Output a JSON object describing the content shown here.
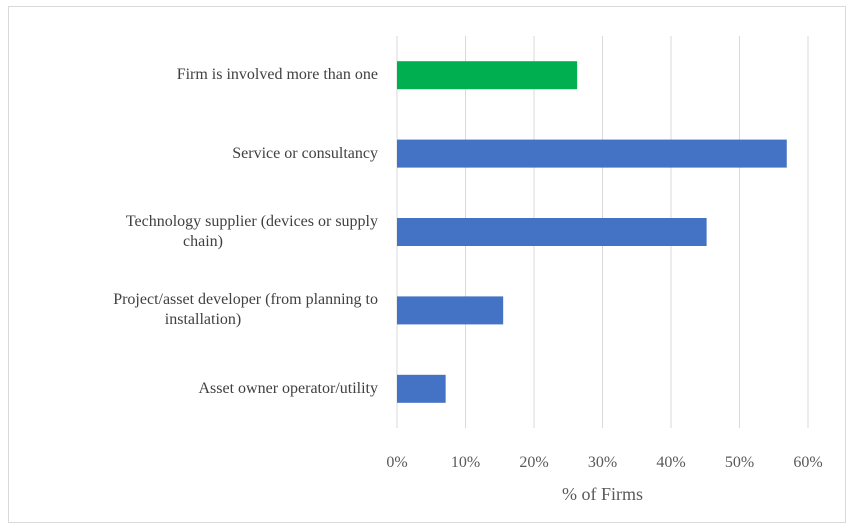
{
  "chart_data": {
    "type": "bar",
    "orientation": "horizontal",
    "categories": [
      "Firm is involved more than one",
      "Service or consultancy",
      "Technology supplier (devices or supply chain)",
      "Project/asset developer (from planning to installation)",
      "Asset owner operator/utility"
    ],
    "category_lines": [
      [
        "Firm is involved more than one"
      ],
      [
        "Service or consultancy"
      ],
      [
        "Technology supplier (devices or supply",
        "chain)"
      ],
      [
        "Project/asset developer (from planning to",
        "installation)"
      ],
      [
        "Asset owner operator/utility"
      ]
    ],
    "values": [
      26.3,
      56.9,
      45.2,
      15.5,
      7.1
    ],
    "colors": [
      "#00b050",
      "#4472c4",
      "#4472c4",
      "#4472c4",
      "#4472c4"
    ],
    "xlabel": "% of Firms",
    "xlim": [
      0,
      60
    ],
    "xticks": [
      0,
      10,
      20,
      30,
      40,
      50,
      60
    ],
    "xtick_labels": [
      "0%",
      "10%",
      "20%",
      "30%",
      "40%",
      "50%",
      "60%"
    ],
    "grid": "vertical",
    "gridline_color": "#d9d9d9"
  }
}
